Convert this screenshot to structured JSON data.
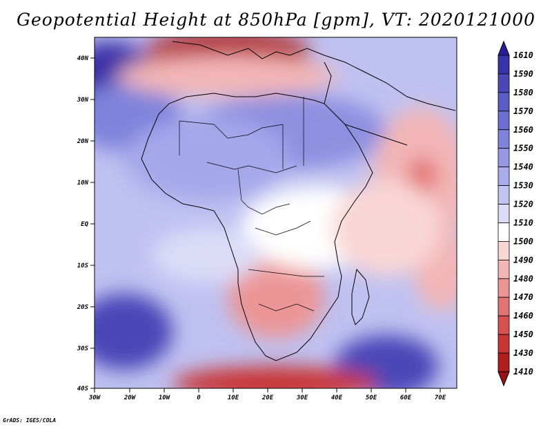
{
  "title": "Geopotential Height at 850hPa [gpm], VT: 2020121000",
  "credit": "GrADS: IGES/COLA",
  "map": {
    "lat_labels": [
      "40N",
      "30N",
      "20N",
      "10N",
      "EQ",
      "10S",
      "20S",
      "30S",
      "40S"
    ],
    "lon_labels": [
      "30W",
      "20W",
      "10W",
      "0",
      "10E",
      "20E",
      "30E",
      "40E",
      "50E",
      "60E",
      "70E"
    ]
  },
  "colorbar": {
    "labels": [
      "1610",
      "1590",
      "1580",
      "1570",
      "1560",
      "1550",
      "1540",
      "1530",
      "1520",
      "1510",
      "1500",
      "1490",
      "1480",
      "1470",
      "1460",
      "1450",
      "1430",
      "1410"
    ],
    "colors": [
      "#2a1e96",
      "#3a33a8",
      "#4a47b8",
      "#5a5cc6",
      "#6c6fd2",
      "#7f83dc",
      "#9497e4",
      "#aaaceb",
      "#c2c3f2",
      "#dcdcf8",
      "#ffffff",
      "#f9d6d6",
      "#f3b6b6",
      "#ec9595",
      "#e47373",
      "#d85151",
      "#c93434",
      "#b01e1e",
      "#961414"
    ]
  }
}
